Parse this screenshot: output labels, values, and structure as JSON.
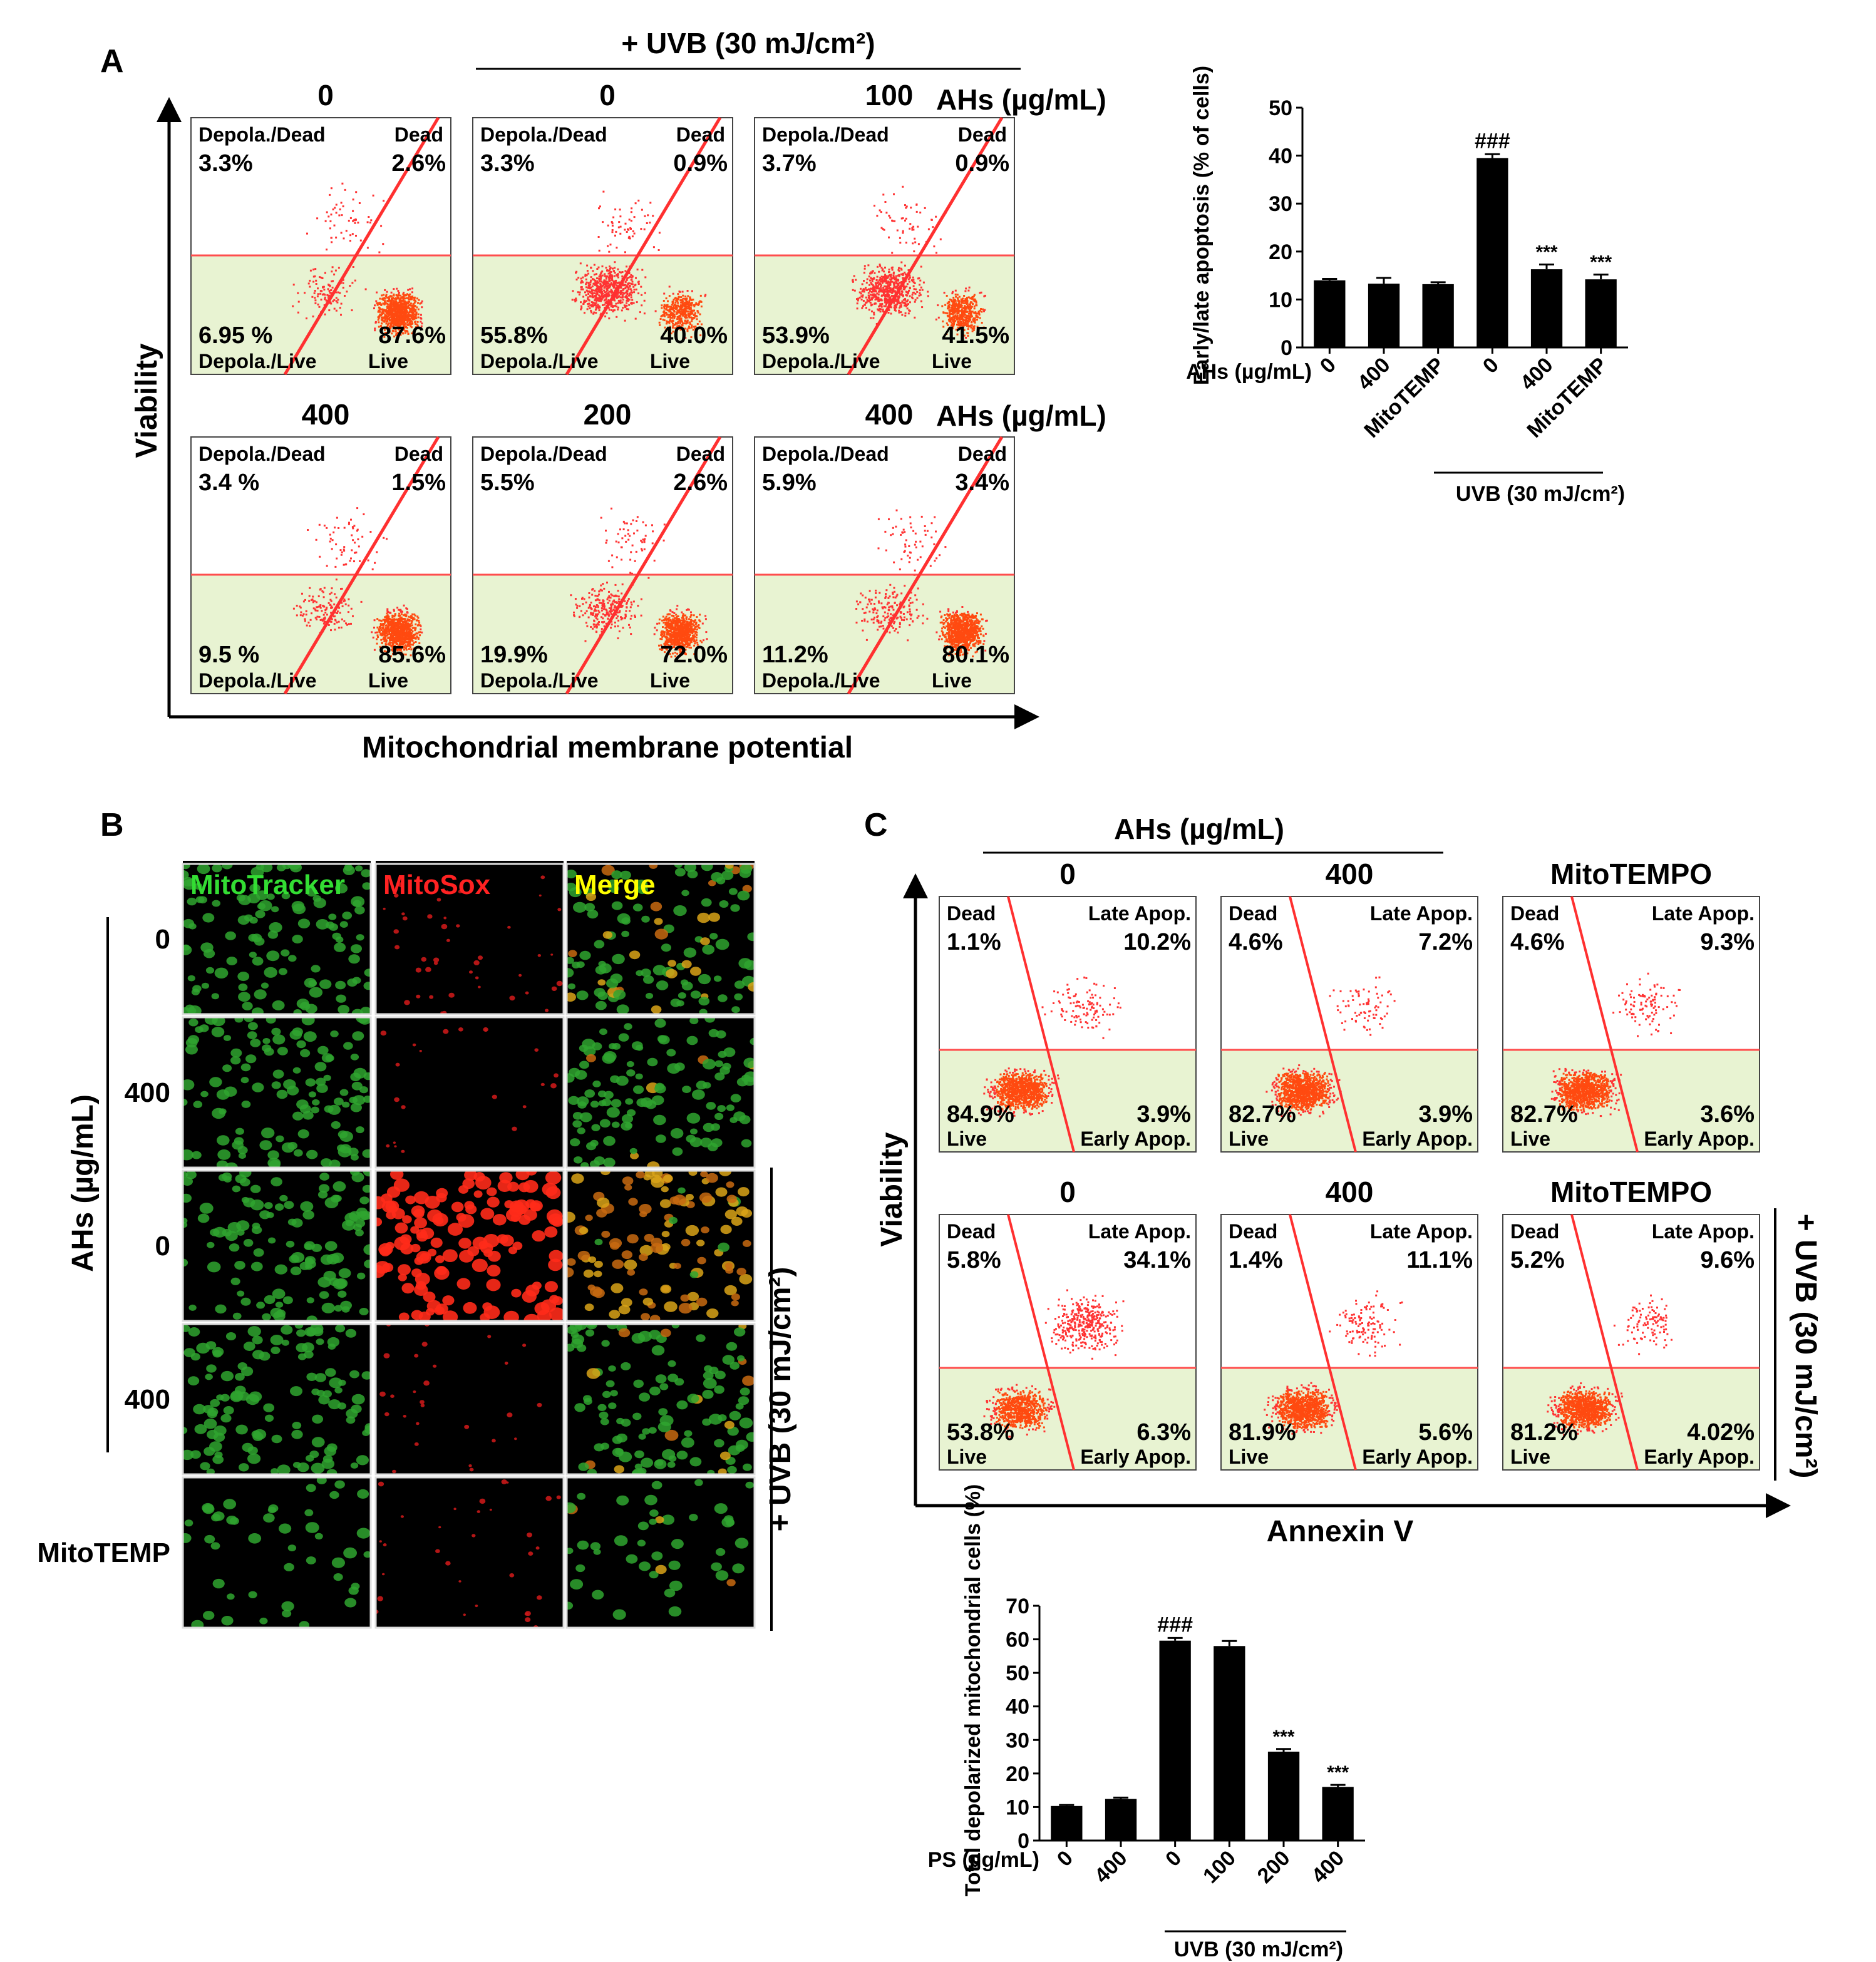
{
  "panel_labels": {
    "a": "A",
    "b": "B",
    "c": "C"
  },
  "panel_a": {
    "uvb_header": "+ UVB (30 mJ/cm²)",
    "ahs_unit": "AHs (µg/mL)",
    "x_axis": "Mitochondrial membrane potential",
    "y_axis": "Viability",
    "quadrant_names": {
      "ul": "Depola./Dead",
      "ur": "Dead",
      "ll": "Depola./Live",
      "lr": "Live"
    },
    "plots": [
      {
        "label": "0",
        "ul": "3.3%",
        "ur": "2.6%",
        "ll": "6.95 %",
        "lr": "87.6%",
        "dep": 0.1
      },
      {
        "label": "0",
        "ul": "3.3%",
        "ur": "0.9%",
        "ll": "55.8%",
        "lr": "40.0%",
        "dep": 0.56
      },
      {
        "label": "100",
        "ul": "3.7%",
        "ur": "0.9%",
        "ll": "53.9%",
        "lr": "41.5%",
        "dep": 0.54
      },
      {
        "label": "400",
        "ul": "3.4 %",
        "ur": "1.5%",
        "ll": "9.5 %",
        "lr": "85.6%",
        "dep": 0.12
      },
      {
        "label": "200",
        "ul": "5.5%",
        "ur": "2.6%",
        "ll": "19.9%",
        "lr": "72.0%",
        "dep": 0.24
      },
      {
        "label": "400",
        "ul": "5.9%",
        "ur": "3.4%",
        "ll": "11.2%",
        "lr": "80.1%",
        "dep": 0.16
      }
    ]
  },
  "panel_b": {
    "columns": [
      "MitoTracker",
      "MitoSox",
      "Merge"
    ],
    "col_colors": [
      "#33dd33",
      "#ff2222",
      "#ffff00"
    ],
    "rows": [
      "0",
      "400",
      "0",
      "400",
      "MitoTEMP"
    ],
    "row_red": [
      0.25,
      0.08,
      0.95,
      0.12,
      0.15
    ],
    "ahs_label": "AHs (µg/mL)",
    "uvb_label": "+ UVB (30 mJ/cm²)"
  },
  "panel_c": {
    "ahs_header": "AHs (µg/mL)",
    "x_axis": "Annexin V",
    "y_axis": "Viability",
    "uvb_label": "+ UVB (30 mJ/cm²)",
    "quadrant_names": {
      "ul": "Dead",
      "ur": "Late Apop.",
      "ll": "Live",
      "lr": "Early Apop."
    },
    "plots": [
      {
        "label": "0",
        "ul": "1.1%",
        "ur": "10.2%",
        "ll": "84.9%",
        "lr": "3.9%"
      },
      {
        "label": "400",
        "ul": "4.6%",
        "ur": "7.2%",
        "ll": "82.7%",
        "lr": "3.9%"
      },
      {
        "label": "MitoTEMPO",
        "ul": "4.6%",
        "ur": "9.3%",
        "ll": "82.7%",
        "lr": "3.6%"
      },
      {
        "label": "0",
        "ul": "5.8%",
        "ur": "34.1%",
        "ll": "53.8%",
        "lr": "6.3%"
      },
      {
        "label": "400",
        "ul": "1.4%",
        "ur": "11.1%",
        "ll": "81.9%",
        "lr": "5.6%"
      },
      {
        "label": "MitoTEMPO",
        "ul": "5.2%",
        "ur": "9.6%",
        "ll": "81.2%",
        "lr": "4.02%"
      }
    ]
  },
  "chart_data": [
    {
      "type": "bar",
      "title": "",
      "ylabel": "Early/late apoptosis (% of cells)",
      "xlabel": "AHs (µg/mL)",
      "group_label": "UVB (30 mJ/cm²)",
      "categories": [
        "0",
        "400",
        "MitoTEMP",
        "0",
        "400",
        "MitoTEMP"
      ],
      "values": [
        14,
        13.3,
        13.2,
        39.5,
        16.3,
        14.2
      ],
      "errors": [
        0.3,
        1.2,
        0.4,
        0.8,
        1.0,
        1.0
      ],
      "annotations": [
        "",
        "",
        "",
        "###",
        "***",
        "***"
      ],
      "ylim": [
        0,
        50
      ],
      "yticks": [
        0,
        10,
        20,
        30,
        40,
        50
      ]
    },
    {
      "type": "bar",
      "title": "",
      "ylabel": "Total depolarized mitochondrial cells (%)",
      "xlabel": "PS (µg/mL)",
      "group_label": "UVB (30 mJ/cm²)",
      "categories": [
        "0",
        "400",
        "0",
        "100",
        "200",
        "400"
      ],
      "values": [
        10.3,
        12.4,
        59.6,
        58,
        26.5,
        16
      ],
      "errors": [
        0.3,
        0.4,
        0.8,
        1.5,
        0.8,
        0.6
      ],
      "annotations": [
        "",
        "",
        "###",
        "",
        "***",
        "***"
      ],
      "ylim": [
        0,
        70
      ],
      "yticks": [
        0,
        10,
        20,
        30,
        40,
        50,
        60,
        70
      ]
    }
  ]
}
